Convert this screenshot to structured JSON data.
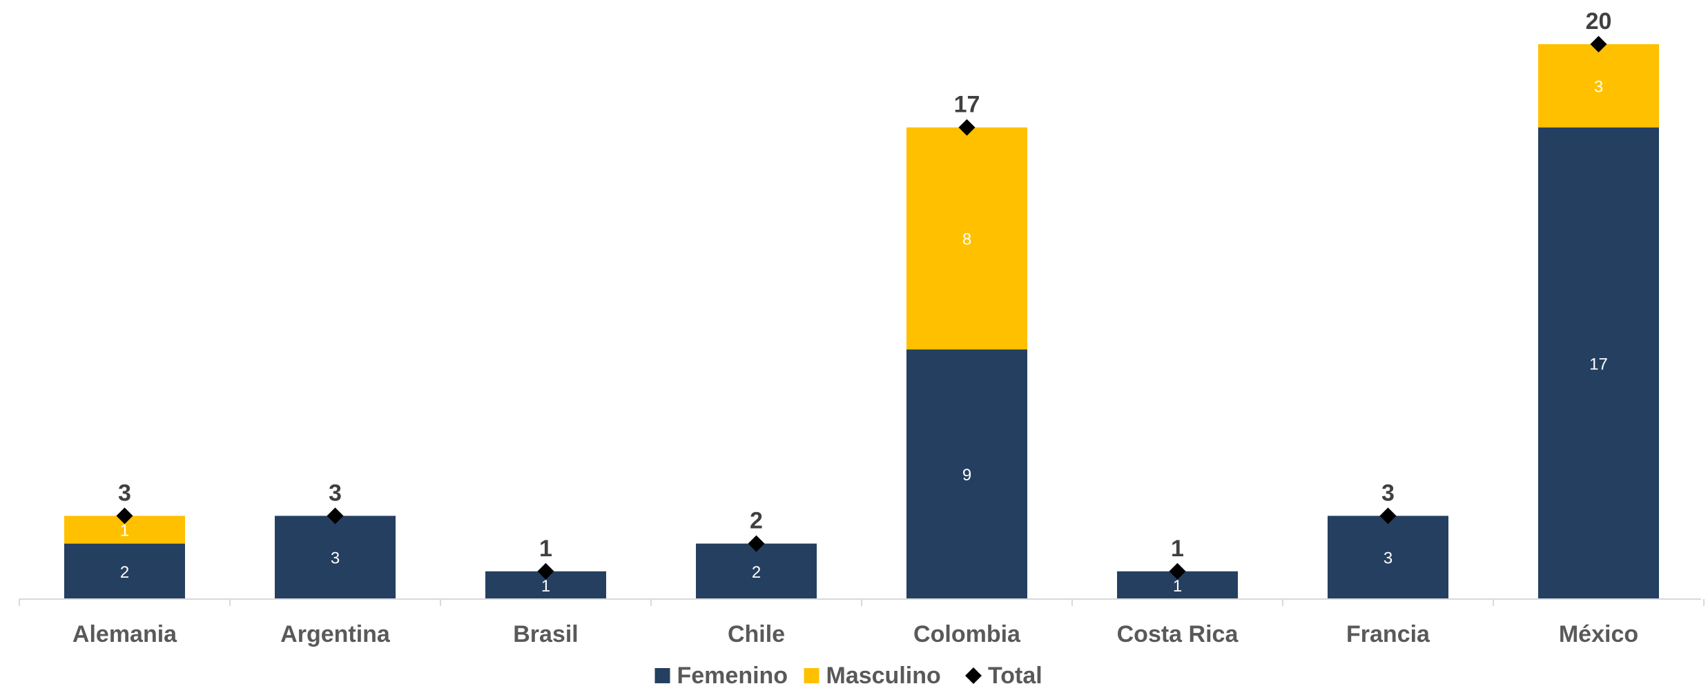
{
  "chart_data": {
    "type": "bar",
    "stacked": true,
    "categories": [
      "Alemania",
      "Argentina",
      "Brasil",
      "Chile",
      "Colombia",
      "Costa Rica",
      "Francia",
      "México"
    ],
    "series": [
      {
        "name": "Femenino",
        "values": [
          2,
          3,
          1,
          2,
          9,
          1,
          3,
          17
        ],
        "color": "#243f60"
      },
      {
        "name": "Masculino",
        "values": [
          1,
          null,
          null,
          null,
          8,
          null,
          null,
          3
        ],
        "color": "#ffc000"
      }
    ],
    "total": {
      "name": "Total",
      "values": [
        3,
        3,
        1,
        2,
        17,
        1,
        3,
        20
      ],
      "marker": "diamond",
      "color": "#000000"
    },
    "ylim": [
      0,
      20
    ],
    "legend_position": "bottom",
    "grid": false,
    "axis_line_color": "#d9d9d9"
  }
}
